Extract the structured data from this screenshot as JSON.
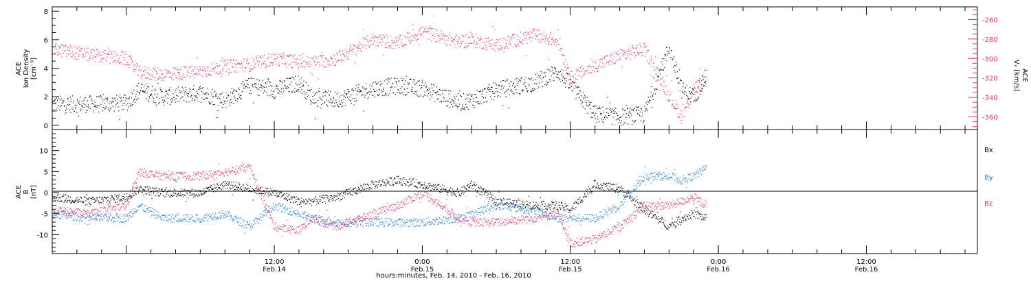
{
  "figure": {
    "footer_label": "hours:minutes, Feb. 14, 2010 - Feb. 16, 2010",
    "colors": {
      "black": "#000000",
      "pink": "#e8336b",
      "blue": "#1f7fd6",
      "axis": "#000000"
    }
  },
  "chart_data": [
    {
      "type": "scatter",
      "panel": "top",
      "xlabel": "hours:minutes, Feb. 14, 2010 - Feb. 16, 2010",
      "x_ticks": [
        {
          "value": "12:00",
          "date": "Feb.14"
        },
        {
          "value": "0:00",
          "date": "Feb.15"
        },
        {
          "value": "12:00",
          "date": "Feb.15"
        },
        {
          "value": "0:00",
          "date": "Feb.16"
        },
        {
          "value": "12:00",
          "date": "Feb.16"
        }
      ],
      "xlim_hours": [
        -6,
        69
      ],
      "data_end_hours": 47,
      "left_axis": {
        "label_lines": [
          "ACE",
          "Ion Density",
          "[cm⁻³]"
        ],
        "ylim": [
          -0.3,
          8.3
        ],
        "ticks": [
          0,
          2,
          4,
          6,
          8
        ]
      },
      "right_axis": {
        "label_lines": [
          "ACE",
          "Vₓ [km/s]"
        ],
        "ylim": [
          -373,
          -247
        ],
        "ticks": [
          -360,
          -340,
          -320,
          -300,
          -280,
          -260
        ]
      },
      "series": [
        {
          "color": "#000000",
          "axis": "left",
          "x": [
            -6,
            -3,
            0,
            1,
            3,
            6,
            8,
            10,
            12,
            14,
            15,
            17,
            20,
            22,
            24,
            27,
            28,
            30,
            33,
            35,
            36,
            38,
            40,
            42,
            44,
            45,
            46,
            47
          ],
          "y": [
            1.5,
            1.5,
            1.6,
            2.5,
            2.0,
            2.3,
            1.8,
            2.8,
            2.5,
            3.0,
            2.0,
            1.8,
            2.6,
            2.8,
            2.6,
            1.6,
            1.8,
            2.5,
            3.0,
            3.8,
            2.8,
            0.8,
            0.6,
            0.8,
            5.5,
            2.5,
            2.0,
            3.5
          ]
        },
        {
          "color": "#e8336b",
          "axis": "right",
          "x": [
            -6,
            -3,
            0,
            1,
            3,
            6,
            8,
            10,
            12,
            14,
            15,
            17,
            20,
            22,
            24,
            27,
            28,
            30,
            33,
            35,
            36,
            38,
            40,
            42,
            44,
            45,
            46,
            47
          ],
          "y": [
            -290,
            -296,
            -300,
            -314,
            -316,
            -313,
            -308,
            -306,
            -300,
            -303,
            -304,
            -300,
            -280,
            -284,
            -272,
            -283,
            -281,
            -286,
            -276,
            -281,
            -320,
            -307,
            -297,
            -290,
            -338,
            -360,
            -330,
            -322
          ]
        }
      ]
    },
    {
      "type": "scatter",
      "panel": "bottom",
      "xlabel": "hours:minutes, Feb. 14, 2010 - Feb. 16, 2010",
      "xlim_hours": [
        -6,
        69
      ],
      "left_axis": {
        "label_lines": [
          "ACE",
          "B",
          "[nT]"
        ],
        "ylim": [
          -14.5,
          15
        ],
        "ticks": [
          -10,
          -5,
          0,
          5,
          10
        ]
      },
      "zero_line": true,
      "legend_position": "right",
      "series": [
        {
          "name": "Bx",
          "color": "#000000",
          "x": [
            -6,
            -3,
            0,
            1,
            3,
            6,
            8,
            10,
            12,
            14,
            15,
            17,
            20,
            22,
            24,
            27,
            28,
            30,
            33,
            35,
            36,
            38,
            40,
            42,
            44,
            45,
            46,
            47
          ],
          "y": [
            -1,
            -2,
            -1,
            1,
            0,
            0,
            2,
            1,
            0,
            -2,
            -2,
            -1,
            2,
            3,
            2,
            0,
            2,
            -2,
            -3,
            -3,
            -4,
            2,
            1,
            -4,
            -8,
            -6,
            -5,
            -6
          ]
        },
        {
          "name": "By",
          "color": "#1f7fd6",
          "x": [
            -6,
            -3,
            0,
            1,
            3,
            6,
            8,
            10,
            12,
            14,
            15,
            17,
            20,
            22,
            24,
            27,
            28,
            30,
            33,
            35,
            36,
            38,
            40,
            42,
            44,
            45,
            46,
            47
          ],
          "y": [
            -5,
            -6,
            -6,
            -3,
            -6,
            -6,
            -5,
            -8,
            -3,
            -5,
            -6,
            -7,
            -7,
            -7,
            -7,
            -6,
            -5,
            -3,
            -4,
            -6,
            -6,
            -6,
            -3,
            4,
            4,
            3,
            4,
            6
          ]
        },
        {
          "name": "Bz",
          "color": "#e8336b",
          "x": [
            -6,
            -3,
            0,
            1,
            3,
            6,
            8,
            10,
            12,
            14,
            15,
            17,
            20,
            22,
            24,
            27,
            28,
            30,
            33,
            35,
            36,
            38,
            40,
            42,
            44,
            45,
            46,
            47
          ],
          "y": [
            -4,
            -5,
            -3,
            5,
            4,
            4,
            5,
            6,
            -8,
            -9,
            -6,
            -8,
            -5,
            -3,
            0,
            -6,
            -7,
            -7,
            -6,
            -5,
            -12,
            -11,
            -8,
            -3,
            -3,
            -2,
            -1,
            -3
          ]
        }
      ]
    }
  ]
}
